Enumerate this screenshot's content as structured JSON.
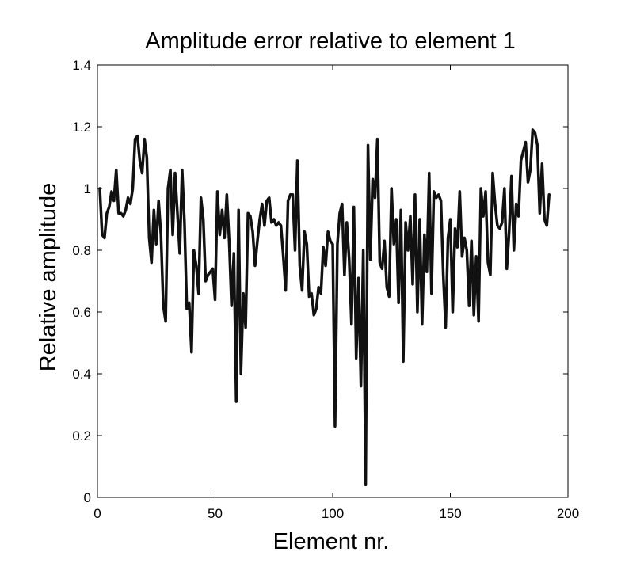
{
  "chart_data": {
    "type": "line",
    "title": "Amplitude error relative to element 1",
    "xlabel": "Element nr.",
    "ylabel": "Relative amplitude",
    "xlim": [
      0,
      200
    ],
    "ylim": [
      0,
      1.4
    ],
    "xticks": [
      0,
      50,
      100,
      150,
      200
    ],
    "xtick_labels": [
      "0",
      "50",
      "100",
      "150",
      "200"
    ],
    "yticks": [
      0,
      0.2,
      0.4,
      0.6,
      0.8,
      1,
      1.2,
      1.4
    ],
    "ytick_labels": [
      "0",
      "0.2",
      "0.4",
      "0.6",
      "0.8",
      "1",
      "1.2",
      "1.4"
    ],
    "grid": false,
    "line_color": "#111111",
    "series": [
      {
        "x": [
          1,
          2,
          3,
          4,
          5,
          6,
          7,
          8,
          9,
          10,
          11,
          12,
          13,
          14,
          15,
          16,
          17,
          18,
          19,
          20,
          21,
          22,
          23,
          24,
          25,
          26,
          27,
          28,
          29,
          30,
          31,
          32,
          33,
          34,
          35,
          36,
          37,
          38,
          39,
          40,
          41,
          42,
          43,
          44,
          45,
          46,
          47,
          48,
          49,
          50,
          51,
          52,
          53,
          54,
          55,
          56,
          57,
          58,
          59,
          60,
          61,
          62,
          63,
          64,
          65,
          66,
          67,
          68,
          69,
          70,
          71,
          72,
          73,
          74,
          75,
          76,
          77,
          78,
          79,
          80,
          81,
          82,
          83,
          84,
          85,
          86,
          87,
          88,
          89,
          90,
          91,
          92,
          93,
          94,
          95,
          96,
          97,
          98,
          99,
          100,
          101,
          102,
          103,
          104,
          105,
          106,
          107,
          108,
          109,
          110,
          111,
          112,
          113,
          114,
          115,
          116,
          117,
          118,
          119,
          120,
          121,
          122,
          123,
          124,
          125,
          126,
          127,
          128,
          129,
          130,
          131,
          132,
          133,
          134,
          135,
          136,
          137,
          138,
          139,
          140,
          141,
          142,
          143,
          144,
          145,
          146,
          147,
          148,
          149,
          150,
          151,
          152,
          153,
          154,
          155,
          156,
          157,
          158,
          159,
          160,
          161,
          162,
          163,
          164,
          165,
          166,
          167,
          168,
          169,
          170,
          171,
          172,
          173,
          174,
          175,
          176,
          177,
          178,
          179,
          180,
          181,
          182,
          183,
          184,
          185,
          186,
          187,
          188,
          189,
          190,
          191,
          192
        ],
        "values": [
          1.0,
          0.85,
          0.84,
          0.92,
          0.94,
          0.99,
          0.96,
          1.06,
          0.92,
          0.92,
          0.91,
          0.93,
          0.97,
          0.95,
          1.0,
          1.16,
          1.17,
          1.09,
          1.05,
          1.16,
          1.1,
          0.84,
          0.76,
          0.93,
          0.82,
          0.96,
          0.85,
          0.62,
          0.57,
          1.0,
          1.06,
          0.85,
          1.05,
          0.92,
          0.79,
          1.06,
          0.89,
          0.61,
          0.63,
          0.47,
          0.8,
          0.75,
          0.66,
          0.97,
          0.9,
          0.7,
          0.72,
          0.73,
          0.74,
          0.64,
          0.99,
          0.85,
          0.93,
          0.84,
          0.98,
          0.83,
          0.62,
          0.79,
          0.31,
          0.93,
          0.4,
          0.66,
          0.55,
          0.92,
          0.91,
          0.86,
          0.75,
          0.83,
          0.9,
          0.95,
          0.88,
          0.96,
          0.97,
          0.89,
          0.9,
          0.88,
          0.89,
          0.88,
          0.78,
          0.67,
          0.96,
          0.98,
          0.98,
          0.8,
          1.09,
          0.75,
          0.67,
          0.86,
          0.82,
          0.65,
          0.66,
          0.59,
          0.61,
          0.68,
          0.66,
          0.81,
          0.75,
          0.86,
          0.83,
          0.82,
          0.23,
          0.82,
          0.92,
          0.95,
          0.72,
          0.89,
          0.77,
          0.56,
          0.94,
          0.45,
          0.71,
          0.36,
          0.8,
          0.04,
          1.14,
          0.77,
          1.03,
          0.97,
          1.16,
          0.76,
          0.74,
          0.83,
          0.68,
          0.65,
          1.0,
          0.82,
          0.9,
          0.63,
          0.93,
          0.44,
          0.89,
          0.8,
          0.91,
          0.69,
          0.98,
          0.6,
          0.9,
          0.56,
          0.85,
          0.73,
          1.05,
          0.66,
          0.99,
          0.97,
          0.98,
          0.96,
          0.72,
          0.55,
          0.84,
          0.9,
          0.6,
          0.87,
          0.81,
          0.99,
          0.78,
          0.84,
          0.8,
          0.62,
          0.83,
          0.59,
          0.78,
          0.57,
          1.0,
          0.91,
          0.99,
          0.76,
          0.72,
          1.05,
          0.95,
          0.88,
          0.87,
          0.89,
          1.0,
          0.74,
          0.86,
          1.04,
          0.8,
          0.95,
          0.91,
          1.09,
          1.12,
          1.15,
          1.02,
          1.06,
          1.19,
          1.18,
          1.14,
          0.92,
          1.08,
          0.9,
          0.88,
          0.98
        ]
      }
    ]
  }
}
